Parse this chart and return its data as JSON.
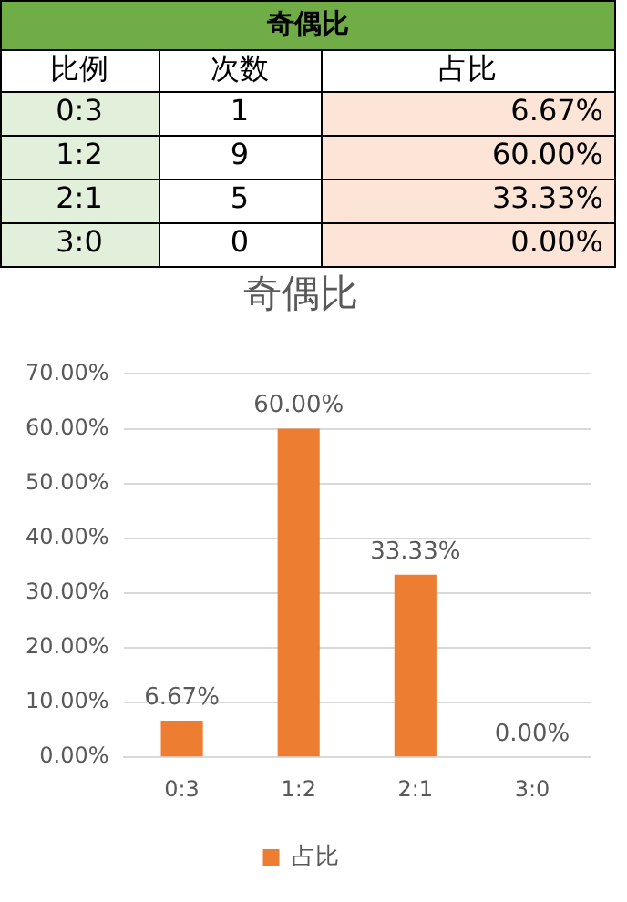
{
  "chart_data": [
    {
      "type": "other",
      "title": "奇偶比",
      "xlabel": "比例",
      "data_labels": true,
      "categories": [
        "0:3",
        "1:2",
        "2:1",
        "3:0"
      ],
      "series": [
        {
          "name": "次数",
          "values": [
            1,
            9,
            5,
            0
          ]
        },
        {
          "name": "占比",
          "values": [
            6.67,
            60,
            33.33,
            0
          ],
          "value_labels": [
            "6.67%",
            "60.00%",
            "33.33%",
            "0.00%"
          ]
        }
      ]
    },
    {
      "type": "bar",
      "title": "奇偶比",
      "categories": [
        "0:3",
        "1:2",
        "2:1",
        "3:0"
      ],
      "series": [
        {
          "name": "占比",
          "color": "#ed7d31",
          "values": [
            6.67,
            60,
            33.33,
            0
          ]
        }
      ],
      "value_labels": [
        "6.67%",
        "60.00%",
        "33.33%",
        "0.00%"
      ],
      "ylim": [
        0,
        70
      ],
      "yticks": [
        {
          "value": 0,
          "label": "0.00%"
        },
        {
          "value": 10,
          "label": "10.00%"
        },
        {
          "value": 20,
          "label": "20.00%"
        },
        {
          "value": 30,
          "label": "30.00%"
        },
        {
          "value": 40,
          "label": "40.00%"
        },
        {
          "value": 50,
          "label": "50.00%"
        },
        {
          "value": 60,
          "label": "60.00%"
        },
        {
          "value": 70,
          "label": "70.00%"
        }
      ],
      "grid": "y",
      "legend": "bottom"
    }
  ]
}
